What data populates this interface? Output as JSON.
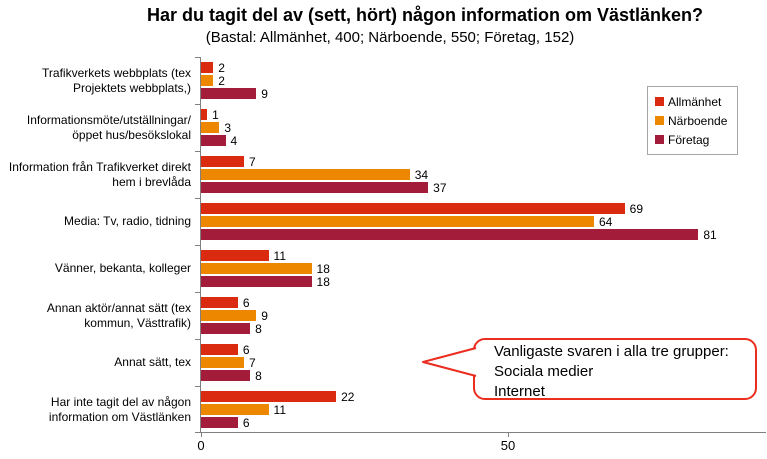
{
  "title": "Har du tagit del av (sett, hört) någon information om Västlänken?",
  "subtitle": "(Bastal: Allmänhet, 400; Närboende, 550; Företag, 152)",
  "chart_data": {
    "type": "bar",
    "orientation": "horizontal",
    "title": "Har du tagit del av (sett, hört) någon information om Västlänken?",
    "subtitle": "(Bastal: Allmänhet, 400; Närboende, 550; Företag, 152)",
    "categories": [
      "Trafikverkets webbplats (tex Projektets webbplats,)",
      "Informationsmöte/utställningar/ öppet hus/besökslokal",
      "Information från Trafikverket direkt hem i brevlåda",
      "Media: Tv, radio, tidning",
      "Vänner, bekanta, kolleger",
      "Annan aktör/annat sätt (tex kommun, Västtrafik)",
      "Annat sätt, tex",
      "Har inte tagit del av någon information om Västlänken"
    ],
    "series": [
      {
        "name": "Allmänhet",
        "color": "#da2b11",
        "values": [
          2,
          1,
          7,
          69,
          11,
          6,
          6,
          22
        ]
      },
      {
        "name": "Närboende",
        "color": "#ee8700",
        "values": [
          2,
          3,
          34,
          64,
          18,
          9,
          7,
          11
        ]
      },
      {
        "name": "Företag",
        "color": "#a31c3a",
        "values": [
          9,
          4,
          37,
          81,
          18,
          8,
          8,
          6
        ]
      }
    ],
    "xlabel": "",
    "ylabel": "",
    "xlim": [
      0,
      92
    ],
    "x_ticks": [
      {
        "value": 0,
        "label": "0"
      },
      {
        "value": 50,
        "label": "50"
      }
    ],
    "value_labels": true,
    "grid": false,
    "legend_position": "top-right"
  },
  "legend": {
    "items": [
      {
        "label": "Allmänhet",
        "color": "#da2b11"
      },
      {
        "label": "Närboende",
        "color": "#ee8700"
      },
      {
        "label": "Företag",
        "color": "#a31c3a"
      }
    ]
  },
  "callout": {
    "lines": [
      "Vanligaste svaren i alla tre grupper:",
      "Sociala medier",
      "Internet"
    ],
    "border_color": "#ea2d1f"
  },
  "colors": {
    "axis": "#808080"
  }
}
